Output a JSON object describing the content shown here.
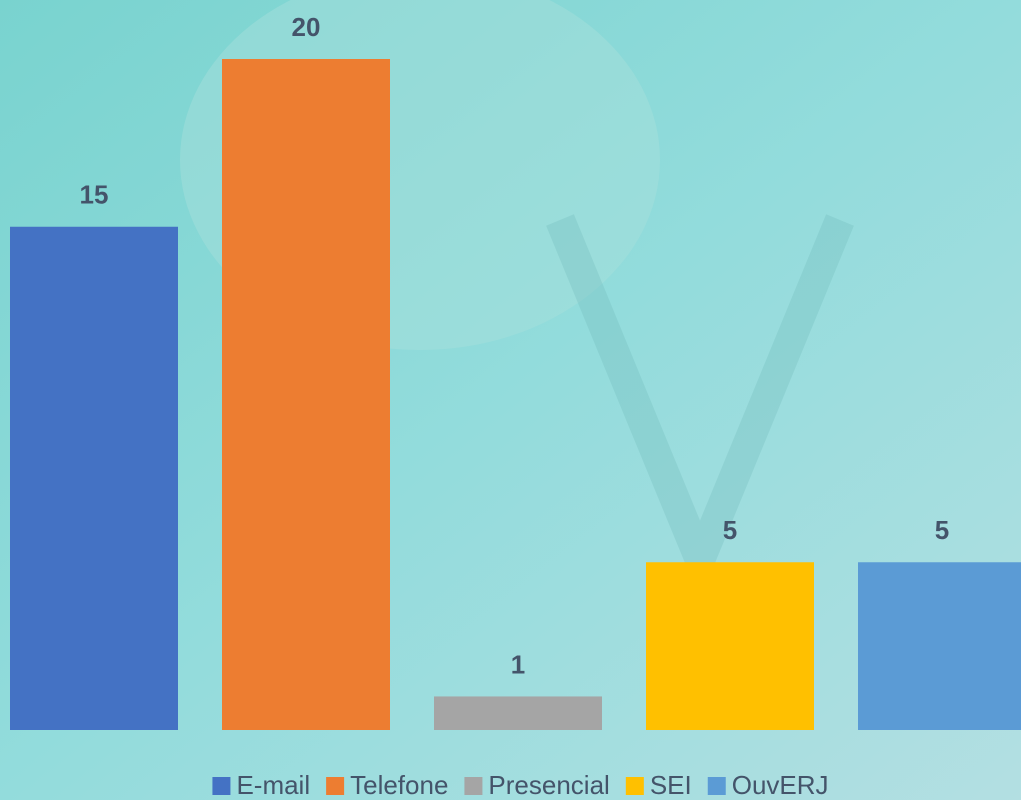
{
  "chart_data": {
    "type": "bar",
    "categories": [
      "E-mail",
      "Telefone",
      "Presencial",
      "SEI",
      "OuvERJ"
    ],
    "values": [
      15,
      20,
      1,
      5,
      5
    ],
    "colors": [
      "#4472c4",
      "#ed7d31",
      "#a5a5a5",
      "#ffc000",
      "#5b9bd5"
    ],
    "ylim": [
      0,
      20
    ],
    "legend": "bottom"
  }
}
